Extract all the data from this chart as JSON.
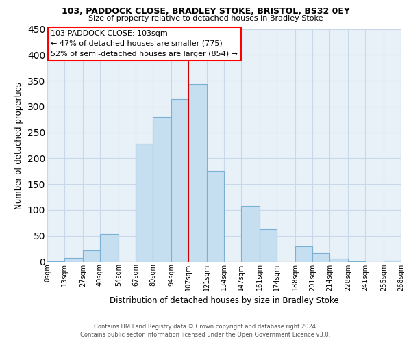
{
  "title1": "103, PADDOCK CLOSE, BRADLEY STOKE, BRISTOL, BS32 0EY",
  "title2": "Size of property relative to detached houses in Bradley Stoke",
  "xlabel": "Distribution of detached houses by size in Bradley Stoke",
  "ylabel": "Number of detached properties",
  "bar_color": "#c6dff0",
  "bar_edgecolor": "#7ab0d4",
  "background_color": "#e8f0f8",
  "grid_color": "#c8d8e8",
  "bin_edges": [
    0,
    13,
    27,
    40,
    54,
    67,
    80,
    94,
    107,
    121,
    134,
    147,
    161,
    174,
    188,
    201,
    214,
    228,
    241,
    255,
    268
  ],
  "bin_labels": [
    "0sqm",
    "13sqm",
    "27sqm",
    "40sqm",
    "54sqm",
    "67sqm",
    "80sqm",
    "94sqm",
    "107sqm",
    "121sqm",
    "134sqm",
    "147sqm",
    "161sqm",
    "174sqm",
    "188sqm",
    "201sqm",
    "214sqm",
    "228sqm",
    "241sqm",
    "255sqm",
    "268sqm"
  ],
  "counts": [
    1,
    7,
    22,
    53,
    0,
    228,
    280,
    315,
    343,
    175,
    0,
    108,
    63,
    0,
    30,
    17,
    6,
    1,
    0,
    2
  ],
  "vline_x": 107,
  "vline_color": "#cc0000",
  "ylim": [
    0,
    450
  ],
  "yticks": [
    0,
    50,
    100,
    150,
    200,
    250,
    300,
    350,
    400,
    450
  ],
  "annotation_title": "103 PADDOCK CLOSE: 103sqm",
  "annotation_line1": "← 47% of detached houses are smaller (775)",
  "annotation_line2": "52% of semi-detached houses are larger (854) →",
  "footer1": "Contains HM Land Registry data © Crown copyright and database right 2024.",
  "footer2": "Contains public sector information licensed under the Open Government Licence v3.0."
}
